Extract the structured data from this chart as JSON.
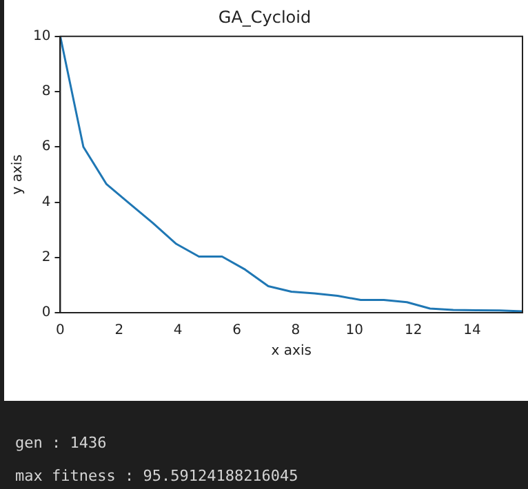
{
  "chart_data": {
    "type": "line",
    "title": "GA_Cycloid",
    "xlabel": "x axis",
    "ylabel": "y axis",
    "x": [
      0,
      0.785,
      1.571,
      2.356,
      3.142,
      3.927,
      4.712,
      5.498,
      6.283,
      7.069,
      7.854,
      8.639,
      9.425,
      10.21,
      10.996,
      11.781,
      12.566,
      13.352,
      14.137,
      14.923,
      15.708
    ],
    "series": [
      {
        "color": "#1f77b4",
        "values": [
          10,
          6.0,
          4.65,
          3.95,
          3.25,
          2.5,
          2.03,
          2.03,
          1.56,
          0.96,
          0.76,
          0.7,
          0.61,
          0.46,
          0.46,
          0.38,
          0.15,
          0.1,
          0.09,
          0.08,
          0.05
        ]
      }
    ],
    "xlim": [
      0,
      15.708
    ],
    "ylim": [
      0,
      10
    ],
    "xticks": [
      0,
      2,
      4,
      6,
      8,
      10,
      12,
      14
    ],
    "yticks": [
      0,
      2,
      4,
      6,
      8,
      10
    ],
    "grid": false,
    "legend": false,
    "marker": "none",
    "line_style": "solid",
    "annotations": [
      "gen : 1436",
      "max fitness : 95.59124188216045"
    ]
  }
}
